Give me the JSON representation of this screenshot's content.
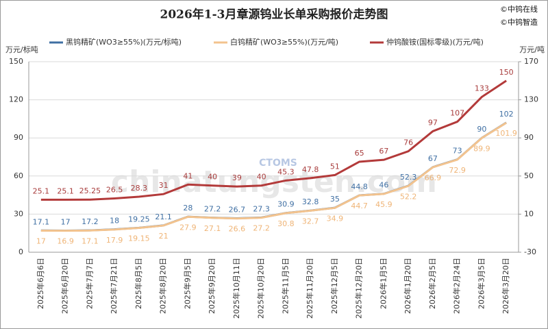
{
  "chart_data": {
    "type": "line",
    "title": "2026年1-3月章源钨业长单采购报价走势图",
    "credits": [
      "©中钨在线",
      "©中钨智造"
    ],
    "watermark": "chinatungsten.com",
    "watermark_logo": "CTOMS",
    "y_label": "万元/标吨",
    "y2_label": "万元/吨",
    "categories": [
      "2025年6月6日",
      "2025年6月20日",
      "2025年7月7日",
      "2025年7月21日",
      "2025年8月5日",
      "2025年8月20日",
      "2025年9月5日",
      "2025年9月20日",
      "2025年10月11日",
      "2025年10月20日",
      "2025年11月5日",
      "2025年11月20日",
      "2025年12月5日",
      "2025年12月20日",
      "2026年1月5日",
      "2026年1月20日",
      "2026年2月5日",
      "2026年2月24日",
      "2026年3月5日",
      "2026年3月20日"
    ],
    "series": [
      {
        "name": "黑钨精矿(WO3≥55%)(万元/标吨)",
        "color": "#3f6fa3",
        "label_color": "#3f6fa3",
        "label_side": "above",
        "values": [
          17.1,
          17,
          17.2,
          18,
          19.25,
          21.1,
          28,
          27.2,
          26.7,
          27.3,
          30.9,
          32.8,
          35,
          44.8,
          46,
          52.3,
          67,
          73,
          90,
          102
        ]
      },
      {
        "name": "白钨精矿(WO3≥55%)(万元/吨)",
        "color": "#f3c38e",
        "label_color": "#efb476",
        "label_side": "below",
        "values": [
          17,
          16.9,
          17.1,
          17.9,
          19.15,
          21,
          27.9,
          27.1,
          26.6,
          27.2,
          30.8,
          32.7,
          34.9,
          44.7,
          45.9,
          52.2,
          66.9,
          72.9,
          89.9,
          101.9
        ]
      },
      {
        "name": "仲钨酸铵(国标零级)(万元/吨)",
        "color": "#b33a3a",
        "label_color": "#a83c3c",
        "label_side": "above",
        "axis": "y2",
        "values": [
          25.1,
          25.1,
          25.25,
          26.5,
          28.3,
          31,
          41,
          40,
          39,
          40,
          45.3,
          47.8,
          51,
          65,
          67,
          76,
          97,
          107,
          133,
          150
        ]
      }
    ],
    "ylim": [
      0,
      150
    ],
    "yticks": [
      0,
      30,
      60,
      90,
      120,
      150
    ],
    "y2lim": [
      -30,
      170
    ],
    "y2ticks": [
      -30,
      10,
      50,
      90,
      130,
      170
    ],
    "grid": true
  }
}
